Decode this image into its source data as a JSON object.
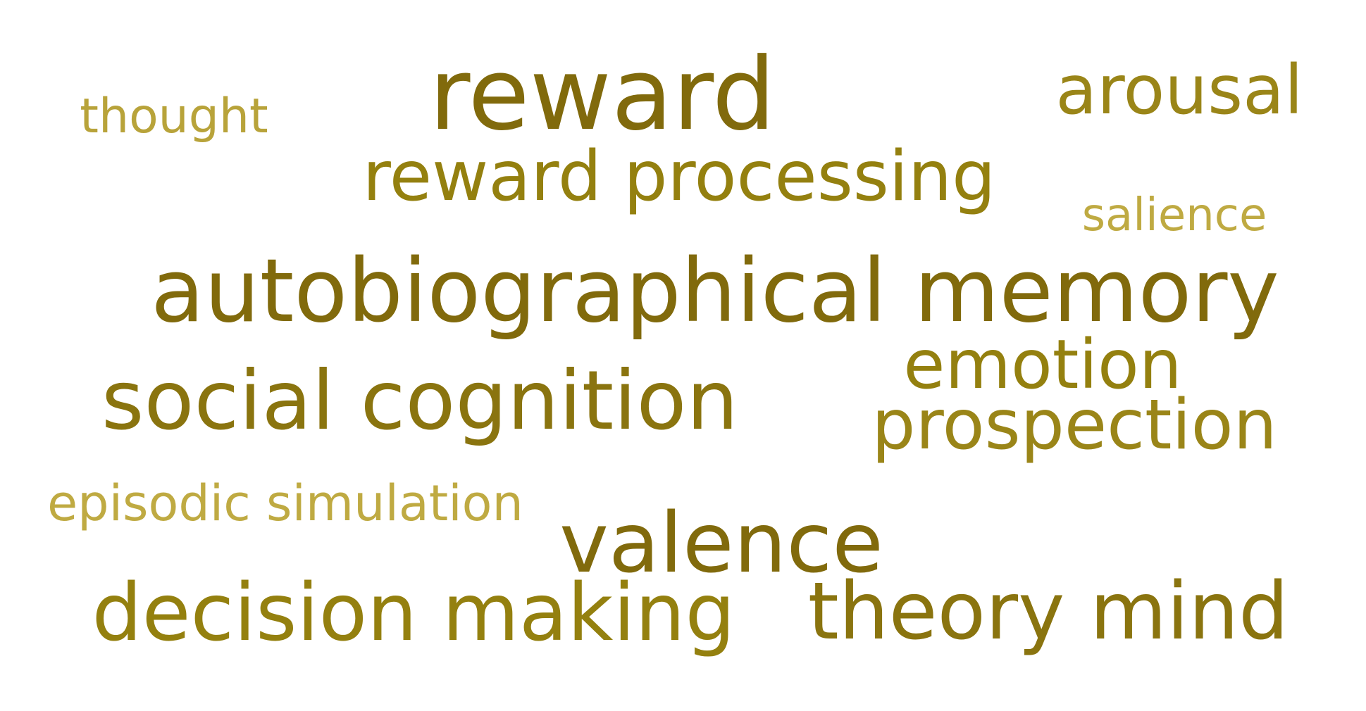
{
  "words": [
    {
      "text": "reward",
      "color": "#816a0c"
    },
    {
      "text": "arousal",
      "color": "#9a8518"
    },
    {
      "text": "thought",
      "color": "#b8a33a"
    },
    {
      "text": "reward processing",
      "color": "#94800f"
    },
    {
      "text": "salience",
      "color": "#bfaa42"
    },
    {
      "text": "autobiographical memory",
      "color": "#816a0c"
    },
    {
      "text": "emotion",
      "color": "#94800f"
    },
    {
      "text": "social cognition",
      "color": "#8a740f"
    },
    {
      "text": "prospection",
      "color": "#9a8518"
    },
    {
      "text": "episodic simulation",
      "color": "#bfaa42"
    },
    {
      "text": "valence",
      "color": "#816a0c"
    },
    {
      "text": "decision making",
      "color": "#94800f"
    },
    {
      "text": "theory mind",
      "color": "#8a740f"
    }
  ]
}
